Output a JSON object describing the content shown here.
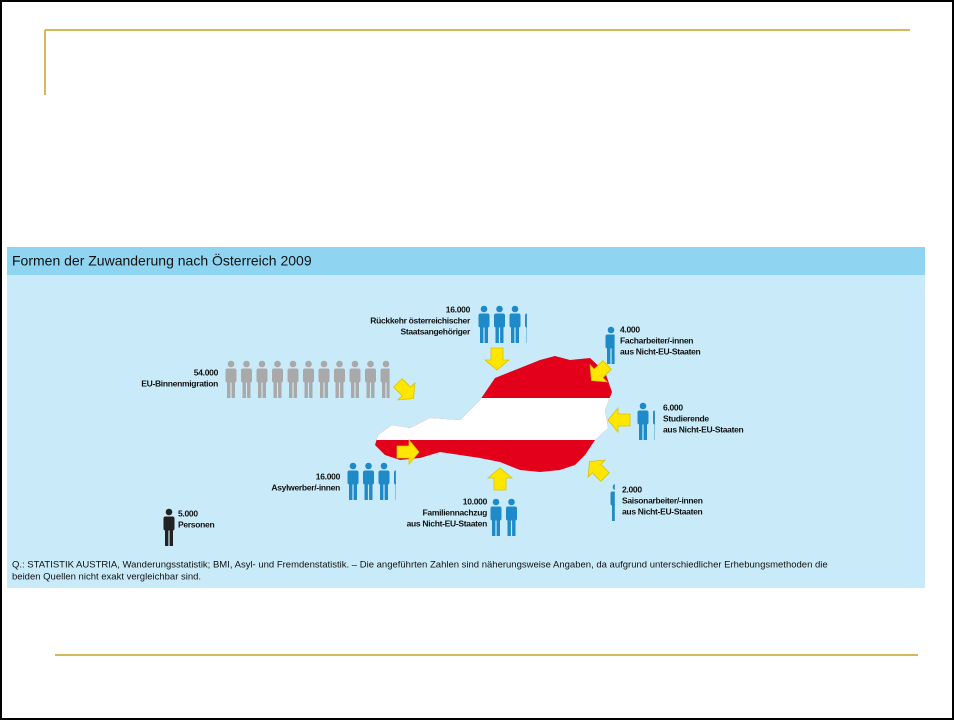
{
  "chart_data": {
    "type": "pictogram",
    "title": "Formen der Zuwanderung nach Österreich 2009",
    "unit": {
      "value": 5000,
      "value_label": "5.000",
      "label": [
        "Personen"
      ],
      "color": "#222222"
    },
    "items": [
      {
        "value": 16000,
        "value_label": "16.000",
        "label": [
          "Rückkehr österreichischer",
          "Staatsangehöriger"
        ],
        "color": "#1f8ac8"
      },
      {
        "value": 4000,
        "value_label": "4.000",
        "label": [
          "Facharbeiter/-innen",
          "aus Nicht-EU-Staaten"
        ],
        "color": "#1f8ac8"
      },
      {
        "value": 54000,
        "value_label": "54.000",
        "label": [
          "EU-Binnenmigration"
        ],
        "color": "#a9a9a9"
      },
      {
        "value": 6000,
        "value_label": "6.000",
        "label": [
          "Studierende",
          "aus Nicht-EU-Staaten"
        ],
        "color": "#1f8ac8"
      },
      {
        "value": 16000,
        "value_label": "16.000",
        "label": [
          "Asylwerber/-innen"
        ],
        "color": "#1f8ac8"
      },
      {
        "value": 10000,
        "value_label": "10.000",
        "label": [
          "Familiennachzug",
          "aus Nicht-EU-Staaten"
        ],
        "color": "#1f8ac8"
      },
      {
        "value": 2000,
        "value_label": "2.000",
        "label": [
          "Saisonarbeiter/-innen",
          "aus Nicht-EU-Staaten"
        ],
        "color": "#1f8ac8"
      }
    ],
    "source": [
      "Q.: STATISTIK AUSTRIA, Wanderungsstatistik; BMI, Asyl- und Fremdenstatistik. – Die angeführten Zahlen sind näherungsweise Angaben, da aufgrund unterschiedlicher Erhebungsmethoden die",
      "beiden Quellen nicht exakt vergleichbar sind."
    ]
  }
}
